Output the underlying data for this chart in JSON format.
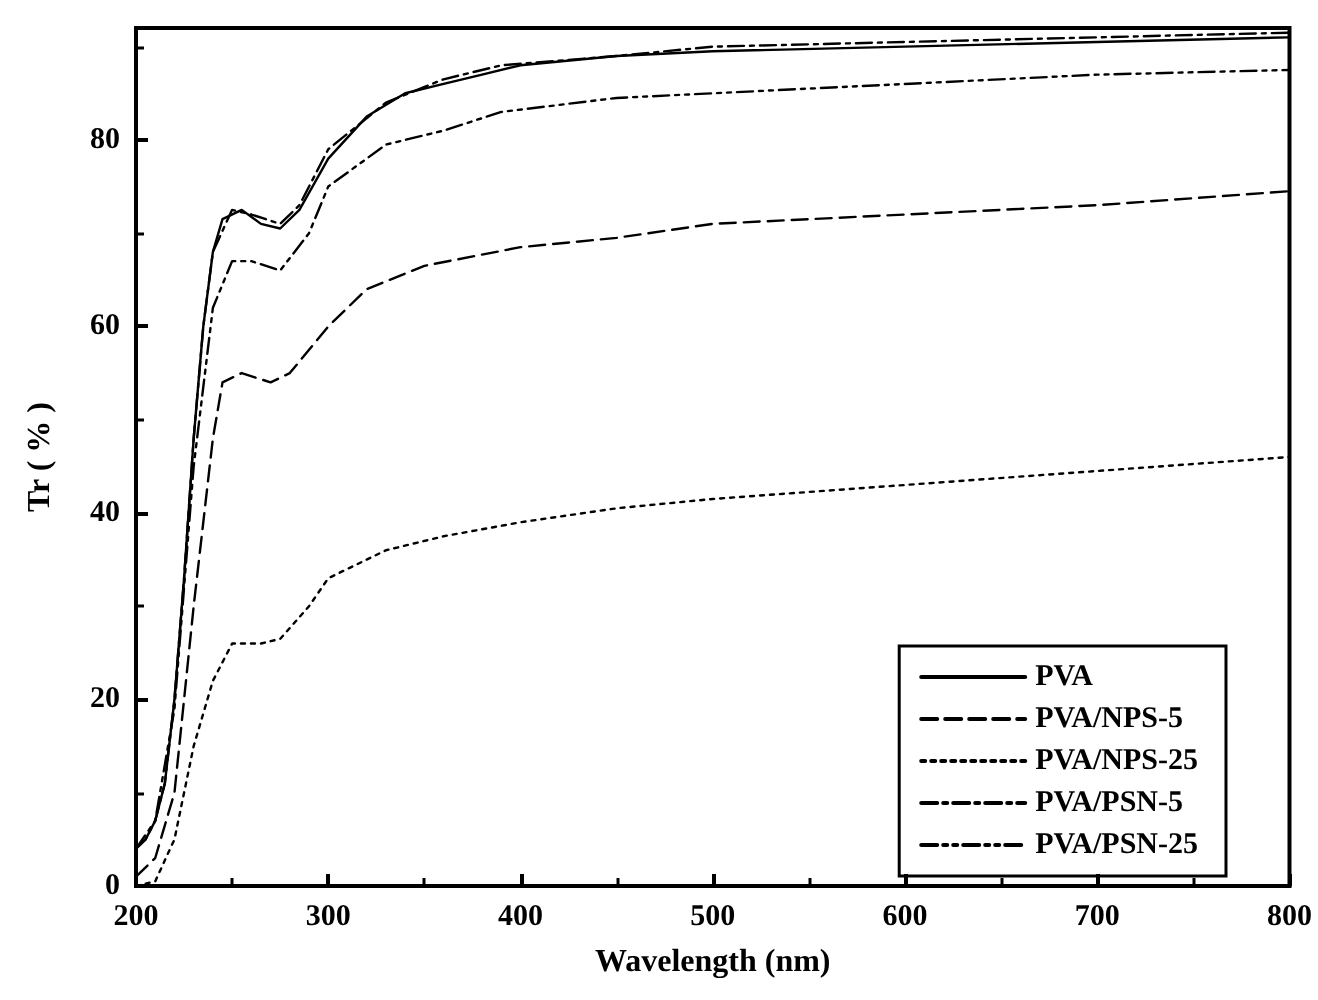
{
  "chart_data": {
    "type": "line",
    "xlabel": "Wavelength (nm)",
    "ylabel": "Tr ( % )",
    "xlim": [
      200,
      800
    ],
    "xticks": [
      200,
      300,
      400,
      500,
      600,
      700,
      800
    ],
    "ylim": [
      0,
      92
    ],
    "yticks": [
      0,
      20,
      40,
      60,
      80
    ],
    "grid": false,
    "legend": "bottom right",
    "marker": "none",
    "series": [
      {
        "name": "PVA",
        "color": "#000000",
        "line_style": "solid",
        "x": [
          200,
          205,
          210,
          215,
          220,
          225,
          230,
          235,
          240,
          245,
          255,
          265,
          275,
          285,
          300,
          320,
          340,
          360,
          380,
          400,
          450,
          500,
          600,
          700,
          800
        ],
        "values": [
          4,
          5,
          7,
          11,
          20,
          33,
          48,
          60,
          68,
          71.5,
          72.5,
          71,
          70.5,
          72.5,
          78,
          82.5,
          85,
          86,
          87,
          88,
          89,
          89.5,
          90,
          90.5,
          91
        ]
      },
      {
        "name": "PVA/NPS-5",
        "color": "#000000",
        "line_style": "dashed",
        "x": [
          200,
          210,
          220,
          230,
          240,
          245,
          255,
          270,
          280,
          300,
          320,
          350,
          400,
          450,
          500,
          600,
          700,
          800
        ],
        "values": [
          1,
          3,
          10,
          30,
          48,
          54,
          55,
          54,
          55,
          60,
          64,
          66.5,
          68.5,
          69.5,
          71,
          72,
          73,
          74.5
        ]
      },
      {
        "name": "PVA/NPS-25",
        "color": "#000000",
        "line_style": "dotted",
        "x": [
          200,
          210,
          220,
          230,
          240,
          250,
          265,
          275,
          290,
          300,
          330,
          360,
          400,
          450,
          500,
          600,
          700,
          800
        ],
        "values": [
          0,
          0.5,
          5,
          15,
          22,
          26,
          26,
          26.5,
          30,
          33,
          36,
          37.5,
          39,
          40.5,
          41.5,
          43,
          44.5,
          46
        ]
      },
      {
        "name": "PVA/PSN-5",
        "color": "#000000",
        "line_style": "dashdot",
        "x": [
          200,
          205,
          210,
          215,
          220,
          225,
          230,
          235,
          240,
          250,
          260,
          275,
          285,
          300,
          330,
          360,
          390,
          450,
          500,
          600,
          700,
          800
        ],
        "values": [
          4,
          5,
          7,
          11,
          20,
          33,
          48,
          60,
          68,
          72.5,
          72,
          71,
          73,
          79,
          84,
          86.5,
          88,
          89,
          90,
          90.5,
          91,
          91.5
        ]
      },
      {
        "name": "PVA/PSN-25",
        "color": "#000000",
        "line_style": "dashdotdot",
        "x": [
          200,
          210,
          220,
          230,
          240,
          250,
          260,
          275,
          290,
          300,
          330,
          360,
          390,
          450,
          500,
          600,
          700,
          800
        ],
        "values": [
          4,
          7,
          19,
          45,
          62,
          67,
          67,
          66,
          70,
          75,
          79.5,
          81,
          83,
          84.5,
          85,
          86,
          87,
          87.5
        ]
      }
    ]
  }
}
